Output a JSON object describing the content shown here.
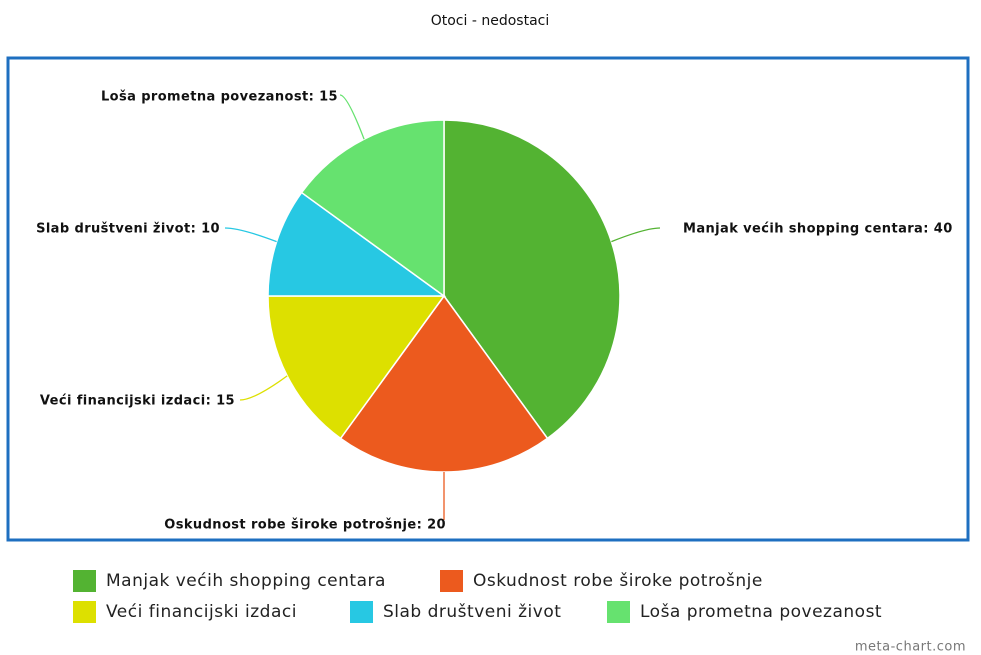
{
  "chart_data": {
    "type": "pie",
    "title": "Otoci - nedostaci",
    "categories": [
      "Manjak većih shopping centara",
      "Oskudnost robe široke potrošnje",
      "Veći financijski izdaci",
      "Slab društveni život",
      "Loša prometna povezanost"
    ],
    "values": [
      40,
      20,
      15,
      10,
      15
    ],
    "value_labels": [
      "Manjak većih shopping centara: 40",
      "Oskudnost robe široke potrošnje: 20",
      "Veći financijski izdaci: 15",
      "Slab društveni život: 10",
      "Loša prometna povezanost: 15"
    ],
    "colors": [
      "#53b332",
      "#ec5a1e",
      "#dde000",
      "#27c8e3",
      "#66e26f"
    ],
    "legend": "bottom",
    "credit": "meta-chart.com"
  }
}
